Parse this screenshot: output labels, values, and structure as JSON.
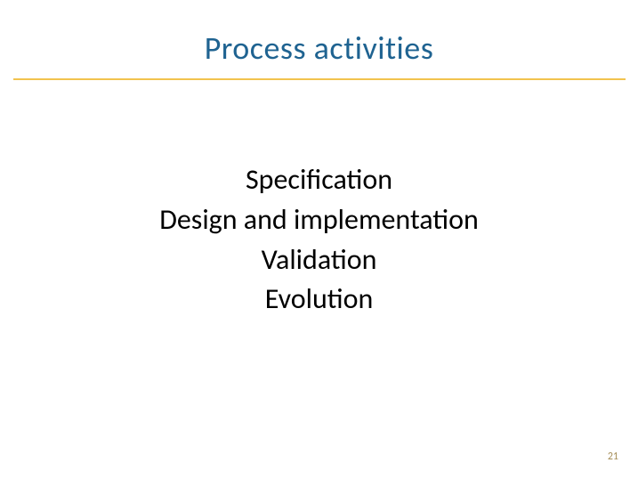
{
  "slide": {
    "title": "Process activities",
    "title_color": "#1f6391",
    "title_fontsize": 36,
    "divider_color": "#f2c34e",
    "content_items": [
      "Specification",
      "Design and implementation",
      "Validation",
      "Evolution"
    ],
    "content_color": "#000000",
    "content_fontsize": 32,
    "page_number": "21",
    "page_number_color": "#a68f5a",
    "background_color": "#ffffff"
  }
}
